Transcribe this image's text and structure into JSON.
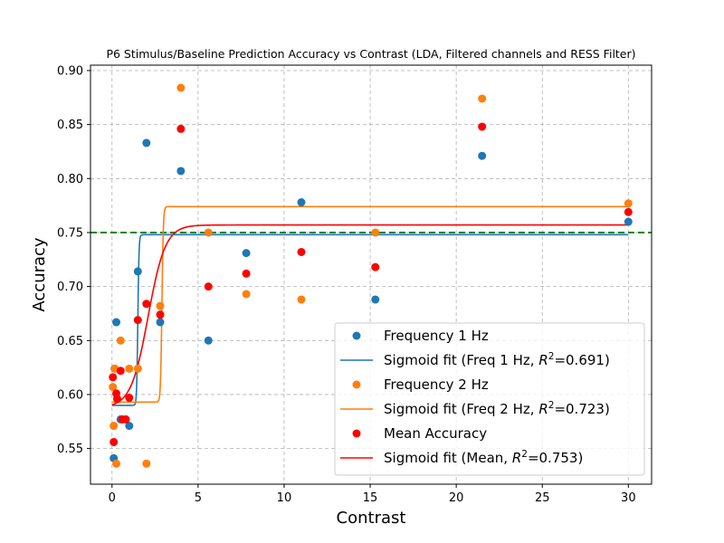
{
  "chart_data": {
    "type": "scatter",
    "title": "P6 Stimulus/Baseline Prediction Accuracy vs Contrast (LDA, Filtered channels and RESS Filter)",
    "xlabel": "Contrast",
    "ylabel": "Accuracy",
    "xlim": [
      -1.25,
      31.35
    ],
    "ylim": [
      0.517,
      0.905
    ],
    "xticks": [
      0,
      5,
      10,
      15,
      20,
      25,
      30
    ],
    "yticks": [
      0.55,
      0.6,
      0.65,
      0.7,
      0.75,
      0.8,
      0.85,
      0.9
    ],
    "ytick_labels": [
      "0.55",
      "0.60",
      "0.65",
      "0.70",
      "0.75",
      "0.80",
      "0.85",
      "0.90"
    ],
    "grid": true,
    "legend_position": "lower-right",
    "reference_line": {
      "y": 0.75,
      "color": "#008000",
      "style": "dashed"
    },
    "series": [
      {
        "name": "Frequency 1 Hz",
        "kind": "scatter",
        "color": "#1f77b4",
        "points": [
          [
            0.1,
            0.541
          ],
          [
            0.15,
            0.624
          ],
          [
            0.25,
            0.667
          ],
          [
            0.5,
            0.577
          ],
          [
            1.0,
            0.571
          ],
          [
            1.5,
            0.714
          ],
          [
            2.0,
            0.833
          ],
          [
            2.8,
            0.667
          ],
          [
            4.0,
            0.807
          ],
          [
            5.6,
            0.65
          ],
          [
            7.8,
            0.731
          ],
          [
            11.0,
            0.778
          ],
          [
            15.3,
            0.688
          ],
          [
            21.5,
            0.821
          ],
          [
            30.0,
            0.76
          ]
        ]
      },
      {
        "name": "Sigmoid fit (Freq 1 Hz, $R^2$=0.691)",
        "kind": "line",
        "color": "#1f77b4",
        "fit": {
          "base": 0.59,
          "amp": 0.158,
          "mid": 1.5,
          "k": 30
        }
      },
      {
        "name": "Frequency 2 Hz",
        "kind": "scatter",
        "color": "#ff7f0e",
        "points": [
          [
            0.05,
            0.607
          ],
          [
            0.1,
            0.571
          ],
          [
            0.15,
            0.624
          ],
          [
            0.25,
            0.536
          ],
          [
            0.5,
            0.65
          ],
          [
            1.0,
            0.624
          ],
          [
            1.5,
            0.624
          ],
          [
            2.0,
            0.536
          ],
          [
            2.8,
            0.682
          ],
          [
            4.0,
            0.884
          ],
          [
            5.6,
            0.75
          ],
          [
            7.8,
            0.693
          ],
          [
            11.0,
            0.688
          ],
          [
            15.3,
            0.75
          ],
          [
            21.5,
            0.874
          ],
          [
            30.0,
            0.777
          ]
        ]
      },
      {
        "name": "Sigmoid fit (Freq 2 Hz, $R^2$=0.723)",
        "kind": "line",
        "color": "#ff7f0e",
        "fit": {
          "base": 0.593,
          "amp": 0.181,
          "mid": 2.9,
          "k": 25
        }
      },
      {
        "name": "Mean Accuracy",
        "kind": "scatter",
        "color": "#ff0000",
        "points": [
          [
            0.05,
            0.616
          ],
          [
            0.1,
            0.556
          ],
          [
            0.25,
            0.601
          ],
          [
            0.3,
            0.596
          ],
          [
            0.5,
            0.622
          ],
          [
            0.6,
            0.577
          ],
          [
            0.8,
            0.577
          ],
          [
            1.0,
            0.597
          ],
          [
            1.5,
            0.669
          ],
          [
            2.0,
            0.684
          ],
          [
            2.8,
            0.674
          ],
          [
            4.0,
            0.846
          ],
          [
            5.6,
            0.7
          ],
          [
            7.8,
            0.712
          ],
          [
            11.0,
            0.732
          ],
          [
            15.3,
            0.718
          ],
          [
            21.5,
            0.848
          ],
          [
            30.0,
            0.769
          ]
        ]
      },
      {
        "name": "Sigmoid fit (Mean, $R^2$=0.753)",
        "kind": "line",
        "color": "#ff0000",
        "fit": {
          "base": 0.588,
          "amp": 0.169,
          "mid": 2.1,
          "k": 2.0
        }
      }
    ]
  }
}
